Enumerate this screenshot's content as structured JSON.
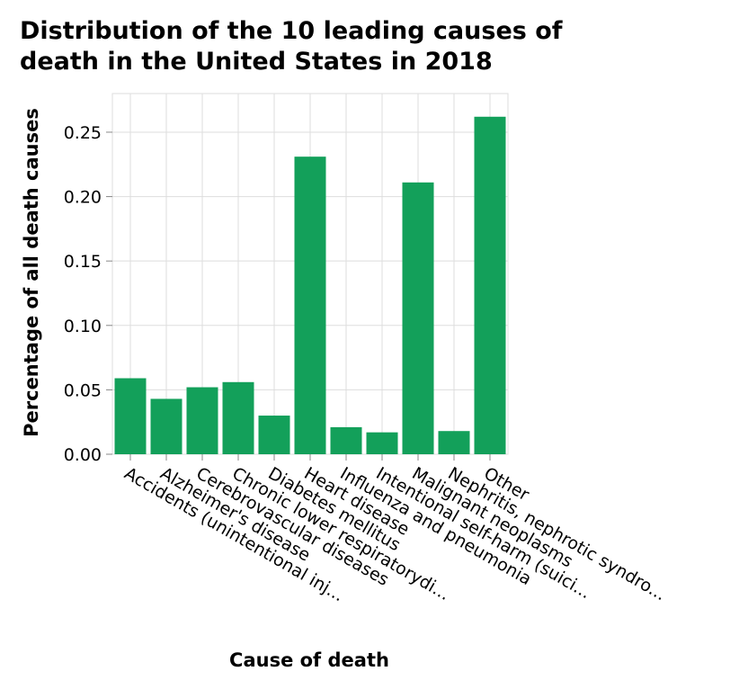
{
  "chart_data": {
    "type": "bar",
    "title_lines": [
      "Distribution of the 10 leading causes of",
      "death in the United States in 2018"
    ],
    "xlabel": "Cause of death",
    "ylabel": "Percentage of all death causes",
    "categories": [
      "Accidents (unintentional inj...",
      "Alzheimer's disease",
      "Cerebrovascular diseases",
      "Chronic lower respiratorydi...",
      "Diabetes mellitus",
      "Heart disease",
      "Influenza and pneumonia",
      "Intentional self-harm (suici...",
      "Malignant neoplasms",
      "Nephritis, nephrotic syndro...",
      "Other"
    ],
    "values": [
      0.059,
      0.043,
      0.052,
      0.056,
      0.03,
      0.231,
      0.021,
      0.017,
      0.211,
      0.018,
      0.262
    ],
    "ylim": [
      0,
      0.28
    ],
    "yticks": [
      "0.00",
      "0.05",
      "0.10",
      "0.15",
      "0.20",
      "0.25"
    ],
    "grid": true,
    "bar_color": "#13a05a",
    "grid_color": "#dddddd"
  }
}
